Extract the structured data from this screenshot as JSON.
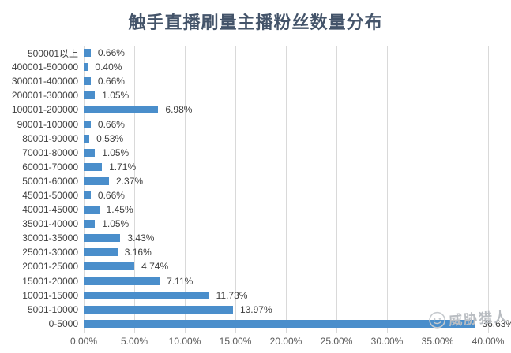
{
  "title": "触手直播刷量主播粉丝数量分布",
  "watermark": {
    "text": "威胁猎人",
    "logo": "hunter-face-logo"
  },
  "colors": {
    "bar": "#4a8ecb",
    "title": "#44546a",
    "grid": "#d9d9d9",
    "tick_label": "#595959",
    "value_label": "#3f3f3f",
    "watermark": "#b9bdc2",
    "background": "#ffffff"
  },
  "chart_data": {
    "type": "bar",
    "orientation": "horizontal",
    "title": "触手直播刷量主播粉丝数量分布",
    "categories": [
      "500001以上",
      "400001-500000",
      "300001-400000",
      "200001-300000",
      "100001-200000",
      "90001-100000",
      "80001-90000",
      "70001-80000",
      "60001-70000",
      "50001-60000",
      "45001-50000",
      "40001-45000",
      "35001-40000",
      "30001-35000",
      "25001-30000",
      "20001-25000",
      "15001-20000",
      "10001-15000",
      "5001-10000",
      "0-5000"
    ],
    "values": [
      0.66,
      0.4,
      0.66,
      1.05,
      6.98,
      0.66,
      0.53,
      1.05,
      1.71,
      2.37,
      0.66,
      1.45,
      1.05,
      3.43,
      3.16,
      4.74,
      7.11,
      11.73,
      13.97,
      36.63
    ],
    "value_labels": [
      "0.66%",
      "0.40%",
      "0.66%",
      "1.05%",
      "6.98%",
      "0.66%",
      "0.53%",
      "1.05%",
      "1.71%",
      "2.37%",
      "0.66%",
      "1.45%",
      "1.05%",
      "3.43%",
      "3.16%",
      "4.74%",
      "7.11%",
      "11.73%",
      "13.97%",
      "36.63%"
    ],
    "xlabel": "",
    "ylabel": "",
    "xlim": [
      0,
      40
    ],
    "x_ticks": [
      "0.00%",
      "5.00%",
      "10.00%",
      "15.00%",
      "20.00%",
      "25.00%",
      "30.00%",
      "35.00%",
      "40.00%"
    ],
    "grid": "vertical",
    "legend": "none"
  }
}
